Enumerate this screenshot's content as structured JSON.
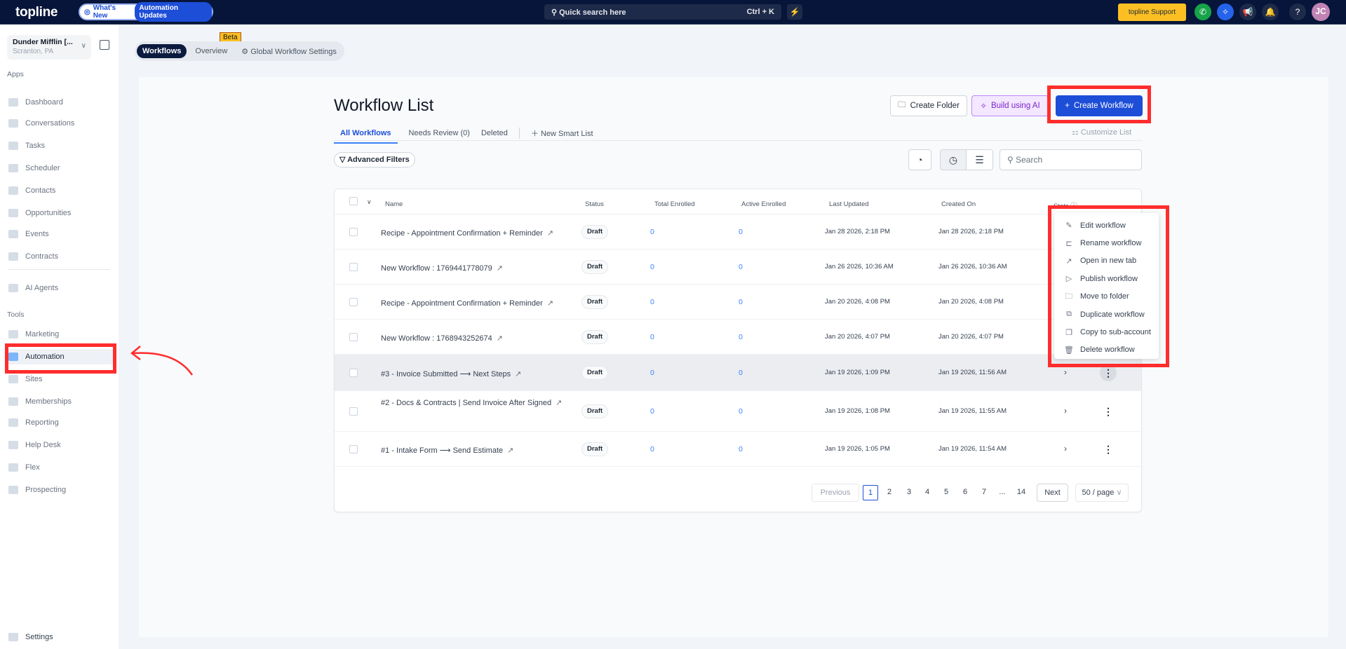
{
  "topbar": {
    "logo": "topline",
    "whats_new": "What's New",
    "automation_updates": "Automation Updates",
    "search_placeholder": "Quick search here",
    "search_shortcut": "Ctrl + K",
    "support": "topline Support",
    "avatar": "JC",
    "help": "?"
  },
  "account": {
    "name": "Dunder Mifflin [...",
    "location": "Scranton, PA"
  },
  "sidebar": {
    "apps_label": "Apps",
    "tools_label": "Tools",
    "apps": [
      "Dashboard",
      "Conversations",
      "Tasks",
      "Scheduler",
      "Contacts",
      "Opportunities",
      "Events",
      "Contracts"
    ],
    "ai_agents": "AI Agents",
    "tools": [
      "Marketing",
      "Automation",
      "Sites",
      "Memberships",
      "Reporting",
      "Help Desk",
      "Flex",
      "Prospecting"
    ],
    "settings": "Settings",
    "active": "Automation"
  },
  "subnav": {
    "tabs": [
      "Workflows",
      "Overview",
      "Global Workflow Settings"
    ],
    "beta": "Beta"
  },
  "page": {
    "title": "Workflow List",
    "create_folder": "Create Folder",
    "build_ai": "Build using AI",
    "create_workflow": "Create Workflow",
    "tabs": [
      "All Workflows",
      "Needs Review (0)",
      "Deleted"
    ],
    "new_smart_list": "New Smart List",
    "customize_list": "Customize List",
    "advanced_filters": "Advanced Filters",
    "search_placeholder": "Search"
  },
  "table": {
    "columns": [
      "Name",
      "Status",
      "Total Enrolled",
      "Active Enrolled",
      "Last Updated",
      "Created On",
      "Stats"
    ],
    "rows": [
      {
        "name": "Recipe - Appointment Confirmation + Reminder",
        "status": "Draft",
        "total": "0",
        "active": "0",
        "updated": "Jan 28 2026, 2:18 PM",
        "created": "Jan 28 2026, 2:18 PM"
      },
      {
        "name": "New Workflow : 1769441778079",
        "status": "Draft",
        "total": "0",
        "active": "0",
        "updated": "Jan 26 2026, 10:36 AM",
        "created": "Jan 26 2026, 10:36 AM"
      },
      {
        "name": "Recipe - Appointment Confirmation + Reminder",
        "status": "Draft",
        "total": "0",
        "active": "0",
        "updated": "Jan 20 2026, 4:08 PM",
        "created": "Jan 20 2026, 4:08 PM"
      },
      {
        "name": "New Workflow : 1768943252674",
        "status": "Draft",
        "total": "0",
        "active": "0",
        "updated": "Jan 20 2026, 4:07 PM",
        "created": "Jan 20 2026, 4:07 PM"
      },
      {
        "name": "#3 - Invoice Submitted ⟶ Next Steps",
        "status": "Draft",
        "total": "0",
        "active": "0",
        "updated": "Jan 19 2026, 1:09 PM",
        "created": "Jan 19 2026, 11:56 AM"
      },
      {
        "name": "#2 - Docs & Contracts | Send Invoice After Signed",
        "status": "Draft",
        "total": "0",
        "active": "0",
        "updated": "Jan 19 2026, 1:08 PM",
        "created": "Jan 19 2026, 11:55 AM"
      },
      {
        "name": "#1 - Intake Form ⟶ Send Estimate",
        "status": "Draft",
        "total": "0",
        "active": "0",
        "updated": "Jan 19 2026, 1:05 PM",
        "created": "Jan 19 2026, 11:54 AM"
      }
    ]
  },
  "context_menu": [
    "Edit workflow",
    "Rename workflow",
    "Open in new tab",
    "Publish workflow",
    "Move to folder",
    "Duplicate workflow",
    "Copy to sub-account",
    "Delete workflow"
  ],
  "pagination": {
    "previous": "Previous",
    "pages": [
      "1",
      "2",
      "3",
      "4",
      "5",
      "6",
      "7",
      "...",
      "14"
    ],
    "current": "1",
    "next": "Next",
    "page_size": "50 / page"
  },
  "colors": {
    "topbar": "#061539",
    "primary": "#1d4ed8",
    "annotation": "#ff2d2d",
    "support": "#fbbf24"
  }
}
